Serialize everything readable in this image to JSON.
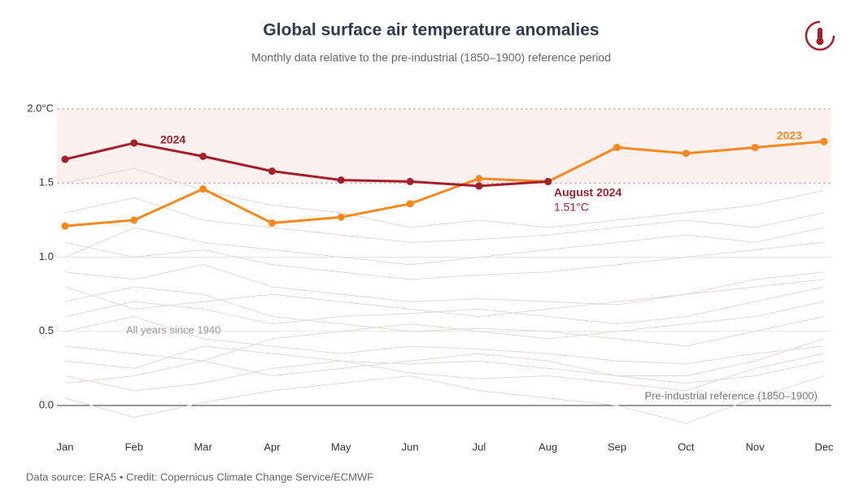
{
  "chart_data": {
    "type": "line",
    "title": "Global surface air temperature anomalies",
    "subtitle": "Monthly data relative to the pre-industrial (1850–1900) reference period",
    "footer": "Data source: ERA5 • Credit: Copernicus Climate Change Service/ECMWF",
    "categories": [
      "Jan",
      "Feb",
      "Mar",
      "Apr",
      "May",
      "Jun",
      "Jul",
      "Aug",
      "Sep",
      "Oct",
      "Nov",
      "Dec"
    ],
    "ylim": [
      -0.2,
      2.0
    ],
    "yticks": [
      {
        "value": 0,
        "label": "0.0"
      },
      {
        "value": 0.5,
        "label": "0.5"
      },
      {
        "value": 1,
        "label": "1.0"
      },
      {
        "value": 1.5,
        "label": "1.5"
      },
      {
        "value": 2,
        "label": "2.0°C"
      }
    ],
    "highlight_band": [
      1.5,
      2.0
    ],
    "background_color": "#e3d7d7",
    "background_series": [
      [
        0.05,
        -0.08,
        0.02,
        0.1,
        0.15,
        0.2,
        0.1,
        0.05,
        0.0,
        -0.12,
        0.05,
        0.2
      ],
      [
        0.3,
        0.25,
        0.4,
        0.35,
        0.3,
        0.28,
        0.3,
        0.25,
        0.2,
        0.15,
        0.2,
        0.3
      ],
      [
        0.5,
        0.6,
        0.45,
        0.4,
        0.35,
        0.4,
        0.38,
        0.35,
        0.3,
        0.28,
        0.35,
        0.4
      ],
      [
        0.2,
        0.1,
        0.15,
        0.25,
        0.3,
        0.22,
        0.18,
        0.2,
        0.15,
        0.1,
        0.25,
        0.35
      ],
      [
        0.7,
        0.8,
        0.75,
        0.6,
        0.55,
        0.5,
        0.52,
        0.5,
        0.45,
        0.4,
        0.5,
        0.6
      ],
      [
        0.9,
        0.85,
        0.95,
        0.8,
        0.75,
        0.7,
        0.72,
        0.7,
        0.68,
        0.75,
        0.8,
        0.85
      ],
      [
        0.4,
        0.35,
        0.3,
        0.45,
        0.5,
        0.55,
        0.5,
        0.45,
        0.5,
        0.55,
        0.6,
        0.7
      ],
      [
        1.1,
        1.0,
        1.05,
        0.95,
        0.9,
        0.85,
        0.88,
        0.9,
        0.95,
        1.0,
        1.05,
        1.1
      ],
      [
        1.3,
        1.4,
        1.25,
        1.2,
        1.15,
        1.1,
        1.12,
        1.15,
        1.2,
        1.25,
        1.2,
        1.3
      ],
      [
        0.6,
        0.7,
        0.65,
        0.55,
        0.6,
        0.62,
        0.65,
        0.6,
        0.55,
        0.6,
        0.7,
        0.8
      ],
      [
        1.0,
        1.2,
        1.1,
        1.05,
        1.0,
        0.95,
        1.0,
        1.05,
        1.1,
        1.15,
        1.1,
        1.2
      ],
      [
        0.15,
        0.2,
        0.3,
        0.2,
        0.25,
        0.3,
        0.35,
        0.3,
        0.2,
        0.2,
        0.3,
        0.45
      ],
      [
        1.5,
        1.6,
        1.45,
        1.35,
        1.3,
        1.2,
        1.25,
        1.2,
        1.25,
        1.3,
        1.35,
        1.45
      ],
      [
        0.8,
        0.65,
        0.7,
        0.75,
        0.7,
        0.65,
        0.6,
        0.65,
        0.7,
        0.75,
        0.85,
        0.9
      ]
    ],
    "series": [
      {
        "name": "2023",
        "color": "#f5891f",
        "values": [
          1.21,
          1.25,
          1.46,
          1.23,
          1.27,
          1.36,
          1.53,
          1.51,
          1.74,
          1.7,
          1.74,
          1.78
        ]
      },
      {
        "name": "2024",
        "color": "#a51f2b",
        "values": [
          1.66,
          1.77,
          1.68,
          1.58,
          1.52,
          1.51,
          1.48,
          1.51,
          null,
          null,
          null,
          null
        ]
      }
    ],
    "annotations": [
      {
        "text": "August 2024"
      },
      {
        "text": "1.51°C"
      },
      {
        "text": "All years since 1940"
      },
      {
        "text": "Pre-industrial reference (1850–1900)"
      }
    ]
  }
}
